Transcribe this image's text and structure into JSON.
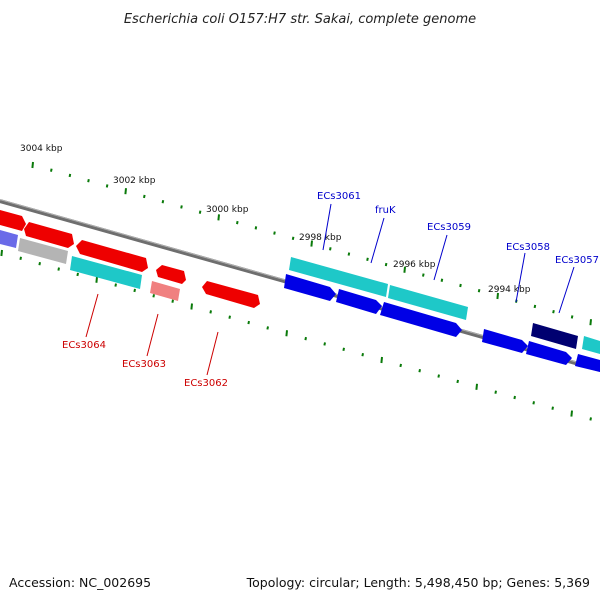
{
  "title": "Escherichia coli O157:H7 str. Sakai, complete genome",
  "accession": "Accession: NC_002695",
  "summary": "Topology: circular; Length: 5,498,450 bp; Genes: 5,369",
  "colors": {
    "forward_gene": "#0000e6",
    "reverse_gene": "#ee0000",
    "rna_gene": "#1ec8c8",
    "pseudo_gene": "#b4b4b4",
    "light_reverse": "#f08080",
    "dark_forward": "#000070",
    "tick": "#0a7a0a",
    "backbone": "#7a7a7a",
    "label_forward": "#0000cc",
    "label_reverse": "#cc0000"
  },
  "tick_labels": [
    "3004 kbp",
    "3002 kbp",
    "3000 kbp",
    "2998 kbp",
    "2996 kbp",
    "2994 kbp"
  ],
  "gene_labels": [
    {
      "text": "ECs3061",
      "strand": "forward"
    },
    {
      "text": "fruK",
      "strand": "forward"
    },
    {
      "text": "ECs3059",
      "strand": "forward"
    },
    {
      "text": "ECs3058",
      "strand": "forward"
    },
    {
      "text": "ECs3057",
      "strand": "forward"
    },
    {
      "text": "ECs3064",
      "strand": "reverse"
    },
    {
      "text": "ECs3063",
      "strand": "reverse"
    },
    {
      "text": "ECs3062",
      "strand": "reverse"
    }
  ]
}
